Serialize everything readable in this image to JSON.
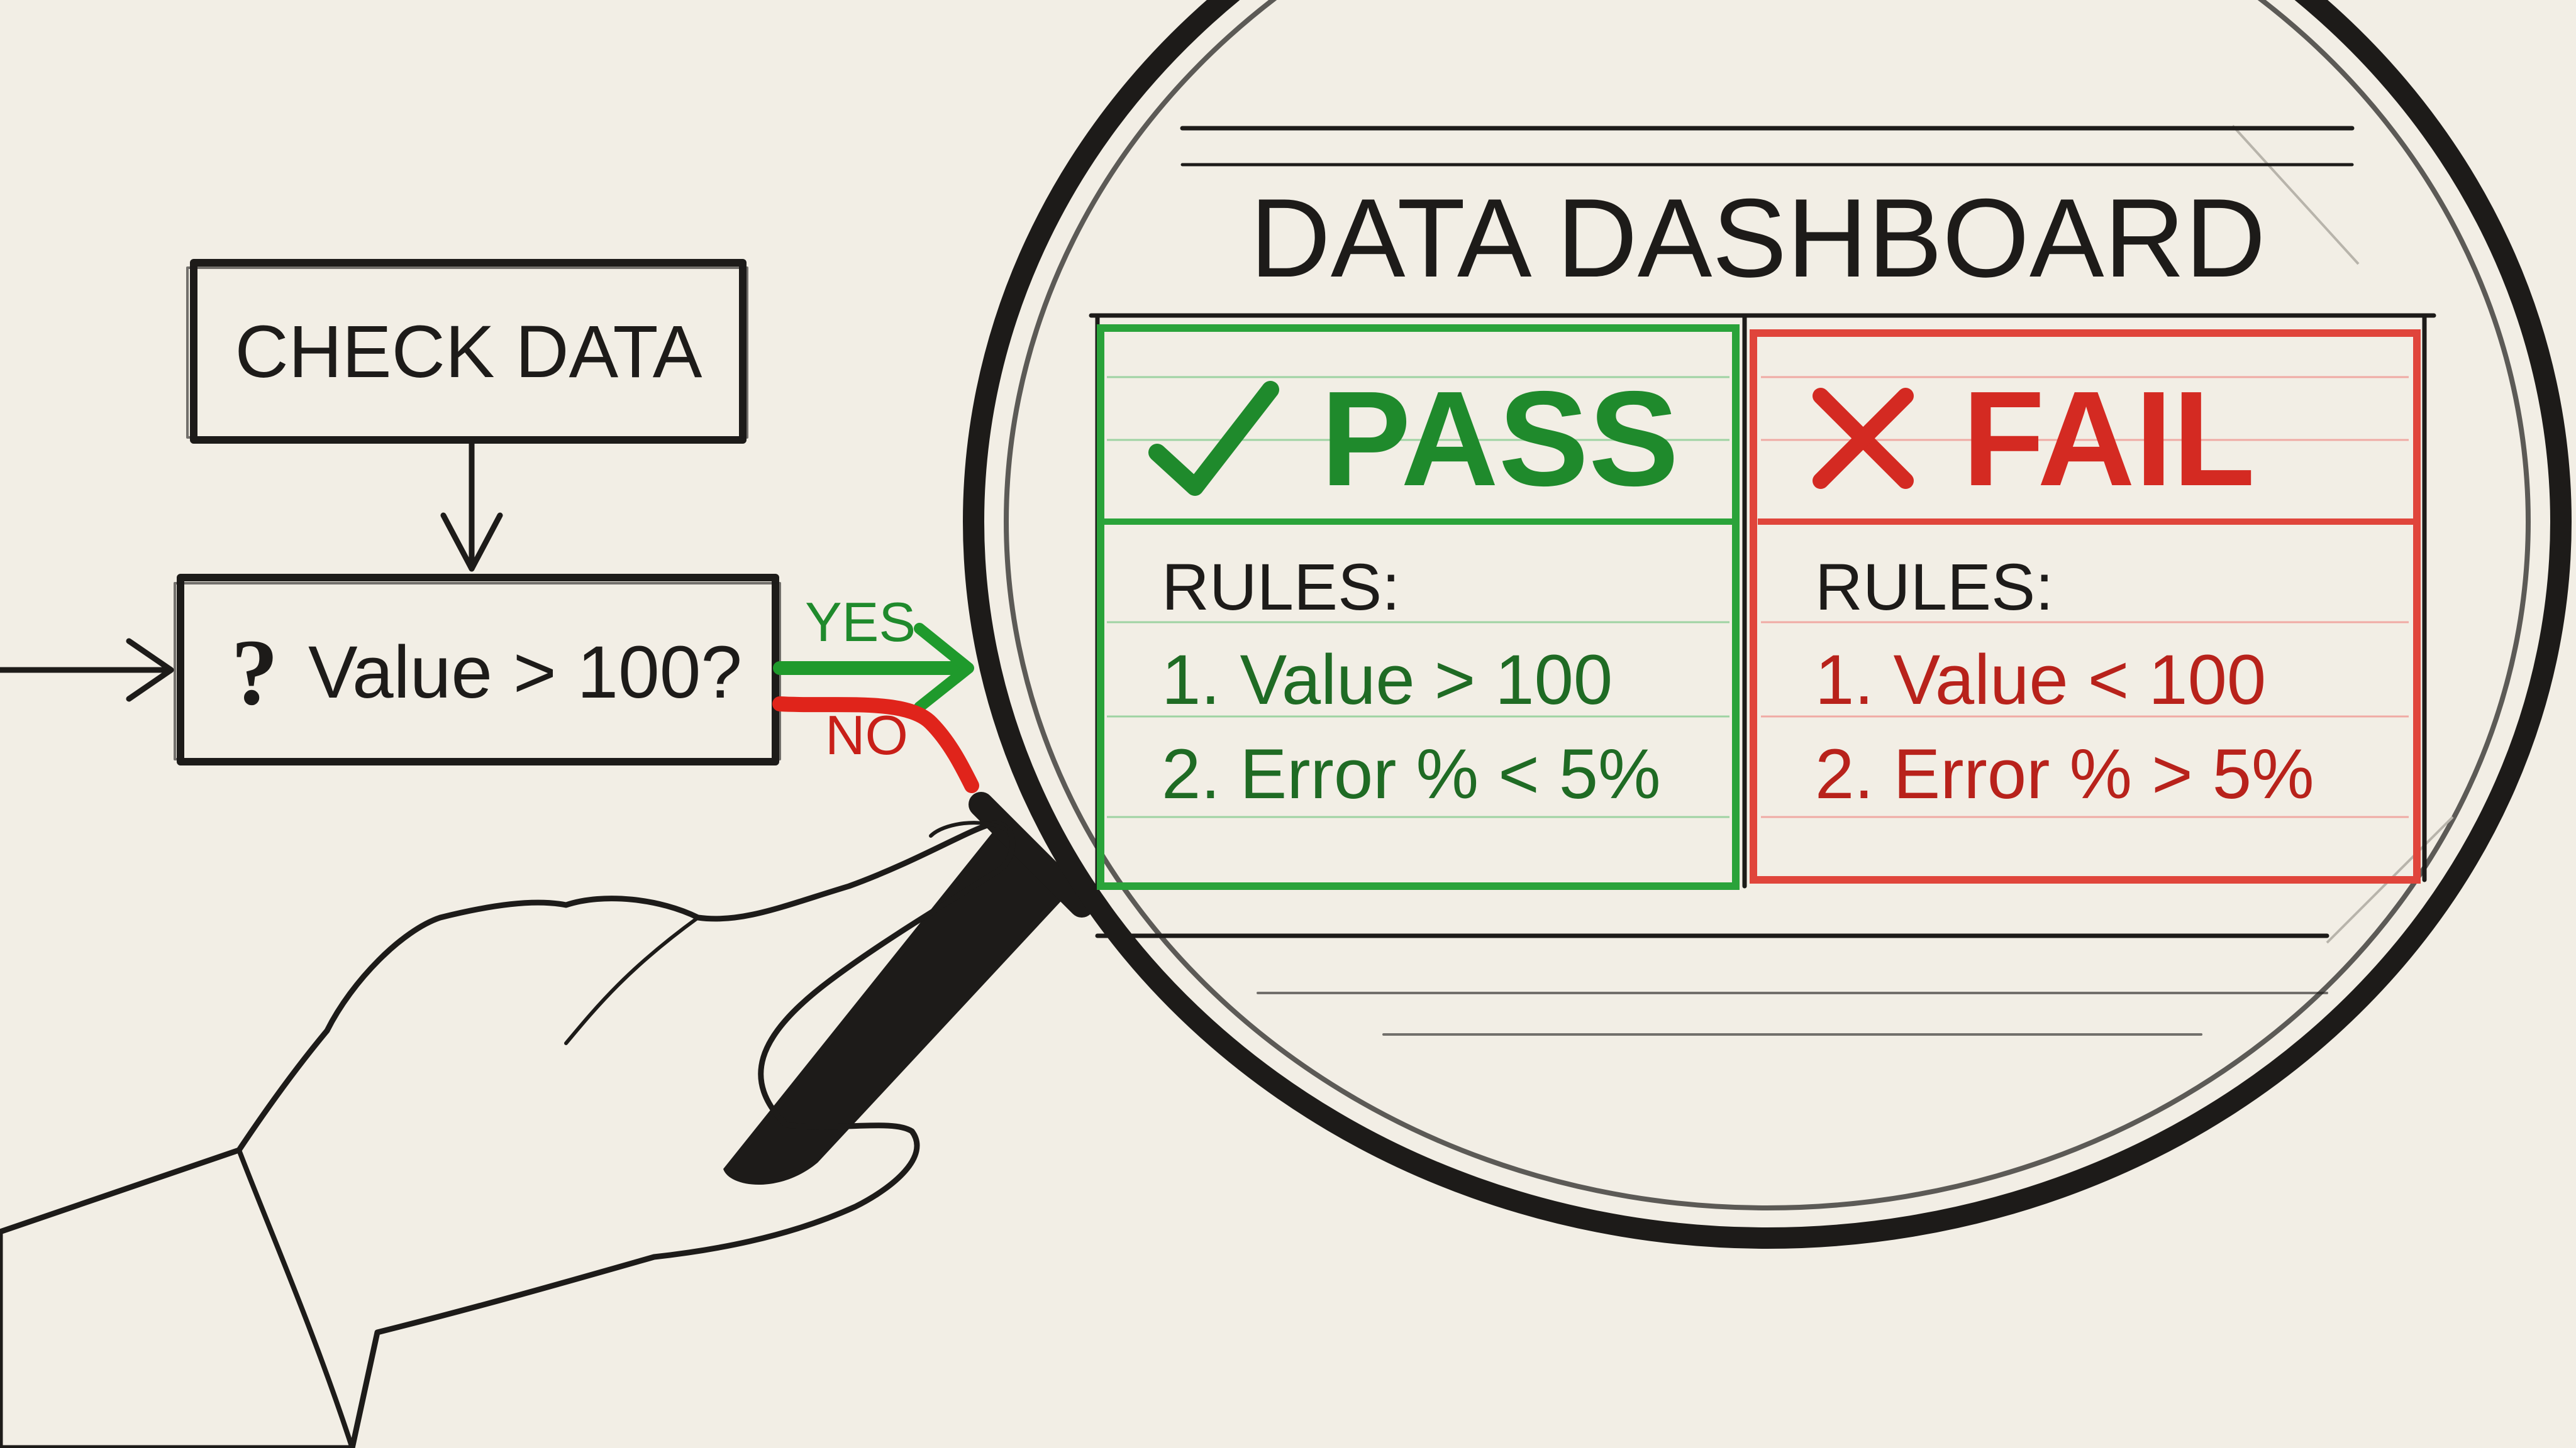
{
  "flowchart": {
    "check_box": "CHECK DATA",
    "decision_icon": "?",
    "decision_text": "Value > 100?",
    "yes_label": "YES",
    "no_label": "NO"
  },
  "dashboard": {
    "title": "DATA DASHBOARD",
    "pass": {
      "icon": "check-icon",
      "label": "PASS",
      "rules_heading": "RULES:",
      "rules": [
        "1. Value > 100",
        "2. Error % < 5%"
      ],
      "color": "#1f8a2c"
    },
    "fail": {
      "icon": "x-icon",
      "label": "FAIL",
      "rules_heading": "RULES:",
      "rules": [
        "1. Value < 100",
        "2. Error % > 5%"
      ],
      "color": "#d42a22"
    }
  },
  "colors": {
    "paper": "#f2eee5",
    "ink": "#1d1b19",
    "yes": "#1f9a2c",
    "no": "#e0241b"
  }
}
